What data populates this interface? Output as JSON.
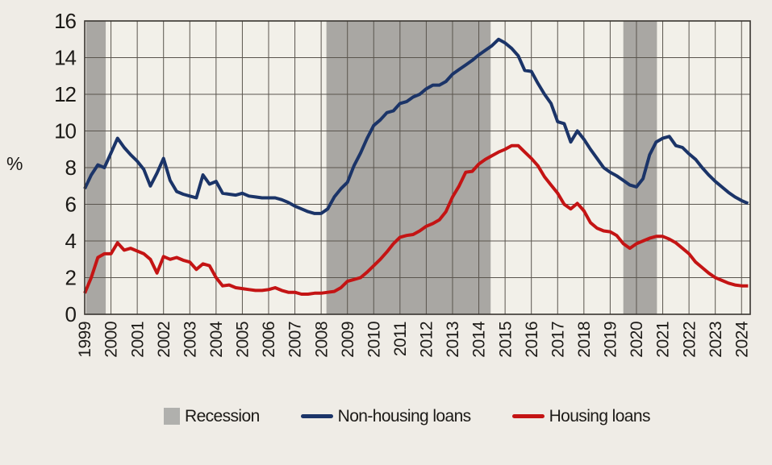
{
  "legend": {
    "items": [
      {
        "id": "recession",
        "label": "Recession",
        "swatch": "box"
      },
      {
        "id": "non_housing",
        "label": "Non-housing loans",
        "swatch": "line"
      },
      {
        "id": "housing",
        "label": "Housing loans",
        "swatch": "line"
      }
    ]
  },
  "chart_data": {
    "type": "line",
    "ylabel": "%",
    "xlabel": "",
    "x_start": 1999.0,
    "x_step": 0.25,
    "x_range": [
      1999,
      2024.33
    ],
    "ylim": [
      0,
      16
    ],
    "grid": true,
    "legend_position": "bottom",
    "x_axis_ticks": [
      "1999",
      "2000",
      "2001",
      "2002",
      "2003",
      "2004",
      "2005",
      "2006",
      "2007",
      "2008",
      "2009",
      "2010",
      "2011",
      "2012",
      "2013",
      "2014",
      "2015",
      "2016",
      "2017",
      "2018",
      "2019",
      "2020",
      "2021",
      "2022",
      "2023",
      "2024"
    ],
    "y_axis_ticks": [
      0,
      2,
      4,
      6,
      8,
      10,
      12,
      14,
      16
    ],
    "recession_bands": [
      {
        "label": "Recession",
        "from": 1999.05,
        "to": 1999.8
      },
      {
        "label": "Recession",
        "from": 2008.2,
        "to": 2014.45
      },
      {
        "label": "Recession",
        "from": 2019.5,
        "to": 2020.78
      }
    ],
    "series": [
      {
        "name": "Non-housing loans",
        "color": "#1b3468",
        "values": [
          6.85,
          7.6,
          8.15,
          8.0,
          8.8,
          9.6,
          9.1,
          8.7,
          8.35,
          7.9,
          7.0,
          7.7,
          8.5,
          7.3,
          6.7,
          6.55,
          6.45,
          6.35,
          7.6,
          7.1,
          7.25,
          6.6,
          6.55,
          6.5,
          6.6,
          6.45,
          6.4,
          6.35,
          6.35,
          6.35,
          6.25,
          6.1,
          5.9,
          5.75,
          5.6,
          5.5,
          5.5,
          5.75,
          6.4,
          6.85,
          7.2,
          8.1,
          8.8,
          9.6,
          10.3,
          10.6,
          11.0,
          11.1,
          11.5,
          11.6,
          11.85,
          12.0,
          12.3,
          12.5,
          12.5,
          12.7,
          13.1,
          13.35,
          13.6,
          13.85,
          14.15,
          14.4,
          14.65,
          15.0,
          14.8,
          14.5,
          14.1,
          13.3,
          13.25,
          12.6,
          12.0,
          11.5,
          10.5,
          10.4,
          9.4,
          10.0,
          9.55,
          9.0,
          8.5,
          8.0,
          7.75,
          7.55,
          7.3,
          7.05,
          6.95,
          7.4,
          8.7,
          9.4,
          9.6,
          9.7,
          9.2,
          9.1,
          8.75,
          8.45,
          8.0,
          7.6,
          7.25,
          6.95,
          6.65,
          6.4,
          6.2,
          6.05
        ]
      },
      {
        "name": "Housing loans",
        "color": "#c41414",
        "values": [
          1.15,
          2.0,
          3.1,
          3.3,
          3.3,
          3.9,
          3.5,
          3.6,
          3.45,
          3.3,
          3.0,
          2.25,
          3.15,
          3.0,
          3.1,
          2.95,
          2.85,
          2.45,
          2.75,
          2.65,
          2.0,
          1.55,
          1.6,
          1.45,
          1.4,
          1.35,
          1.3,
          1.3,
          1.35,
          1.45,
          1.3,
          1.2,
          1.2,
          1.1,
          1.1,
          1.15,
          1.15,
          1.2,
          1.25,
          1.45,
          1.8,
          1.9,
          2.0,
          2.3,
          2.65,
          3.0,
          3.4,
          3.85,
          4.2,
          4.3,
          4.35,
          4.55,
          4.8,
          4.95,
          5.15,
          5.6,
          6.4,
          7.0,
          7.75,
          7.8,
          8.2,
          8.45,
          8.65,
          8.85,
          9.0,
          9.2,
          9.2,
          8.85,
          8.5,
          8.1,
          7.5,
          7.05,
          6.6,
          6.0,
          5.75,
          6.05,
          5.65,
          5.0,
          4.7,
          4.55,
          4.5,
          4.3,
          3.85,
          3.6,
          3.85,
          4.0,
          4.15,
          4.25,
          4.25,
          4.1,
          3.9,
          3.6,
          3.3,
          2.85,
          2.55,
          2.25,
          2.0,
          1.85,
          1.7,
          1.6,
          1.55,
          1.55
        ]
      }
    ],
    "colors": {
      "recession_band": "#a9a7a3",
      "recession_swatch": "#b0b0ad",
      "plot_bg": "#f2f0e9",
      "page_bg": "#efece6",
      "gridline": "#5a554e",
      "border": "#38342f",
      "text": "#1c1a17"
    }
  }
}
